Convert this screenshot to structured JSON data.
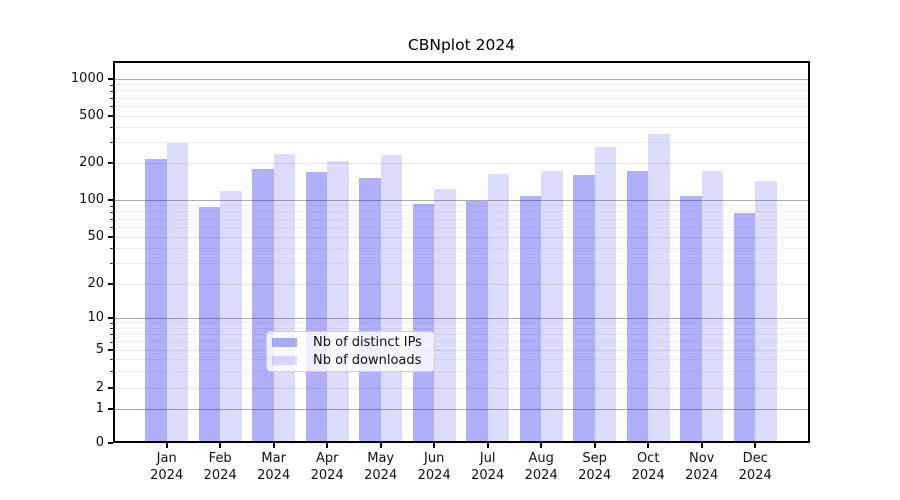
{
  "chart_data": {
    "type": "bar",
    "title": "CBNplot 2024",
    "categories": [
      "Jan",
      "Feb",
      "Mar",
      "Apr",
      "May",
      "Jun",
      "Jul",
      "Aug",
      "Sep",
      "Oct",
      "Nov",
      "Dec"
    ],
    "category_year": "2024",
    "series": [
      {
        "name": "Nb of distinct IPs",
        "color": "#afaffa",
        "fill_rgba": "rgba(20,20,240,0.34)",
        "values": [
          215,
          87,
          180,
          170,
          150,
          93,
          98,
          108,
          160,
          171,
          108,
          79
        ]
      },
      {
        "name": "Nb of downloads",
        "color": "#dcdcfd",
        "fill_rgba": "rgba(20,20,240,0.15)",
        "values": [
          293,
          119,
          240,
          206,
          232,
          124,
          162,
          171,
          272,
          350,
          171,
          142
        ]
      }
    ],
    "yticks": [
      0,
      1,
      2,
      5,
      10,
      20,
      50,
      100,
      200,
      500,
      1000
    ],
    "ylim": [
      0,
      1385
    ],
    "yscale": "symlog",
    "grid": true,
    "legend_position": "lower center"
  }
}
